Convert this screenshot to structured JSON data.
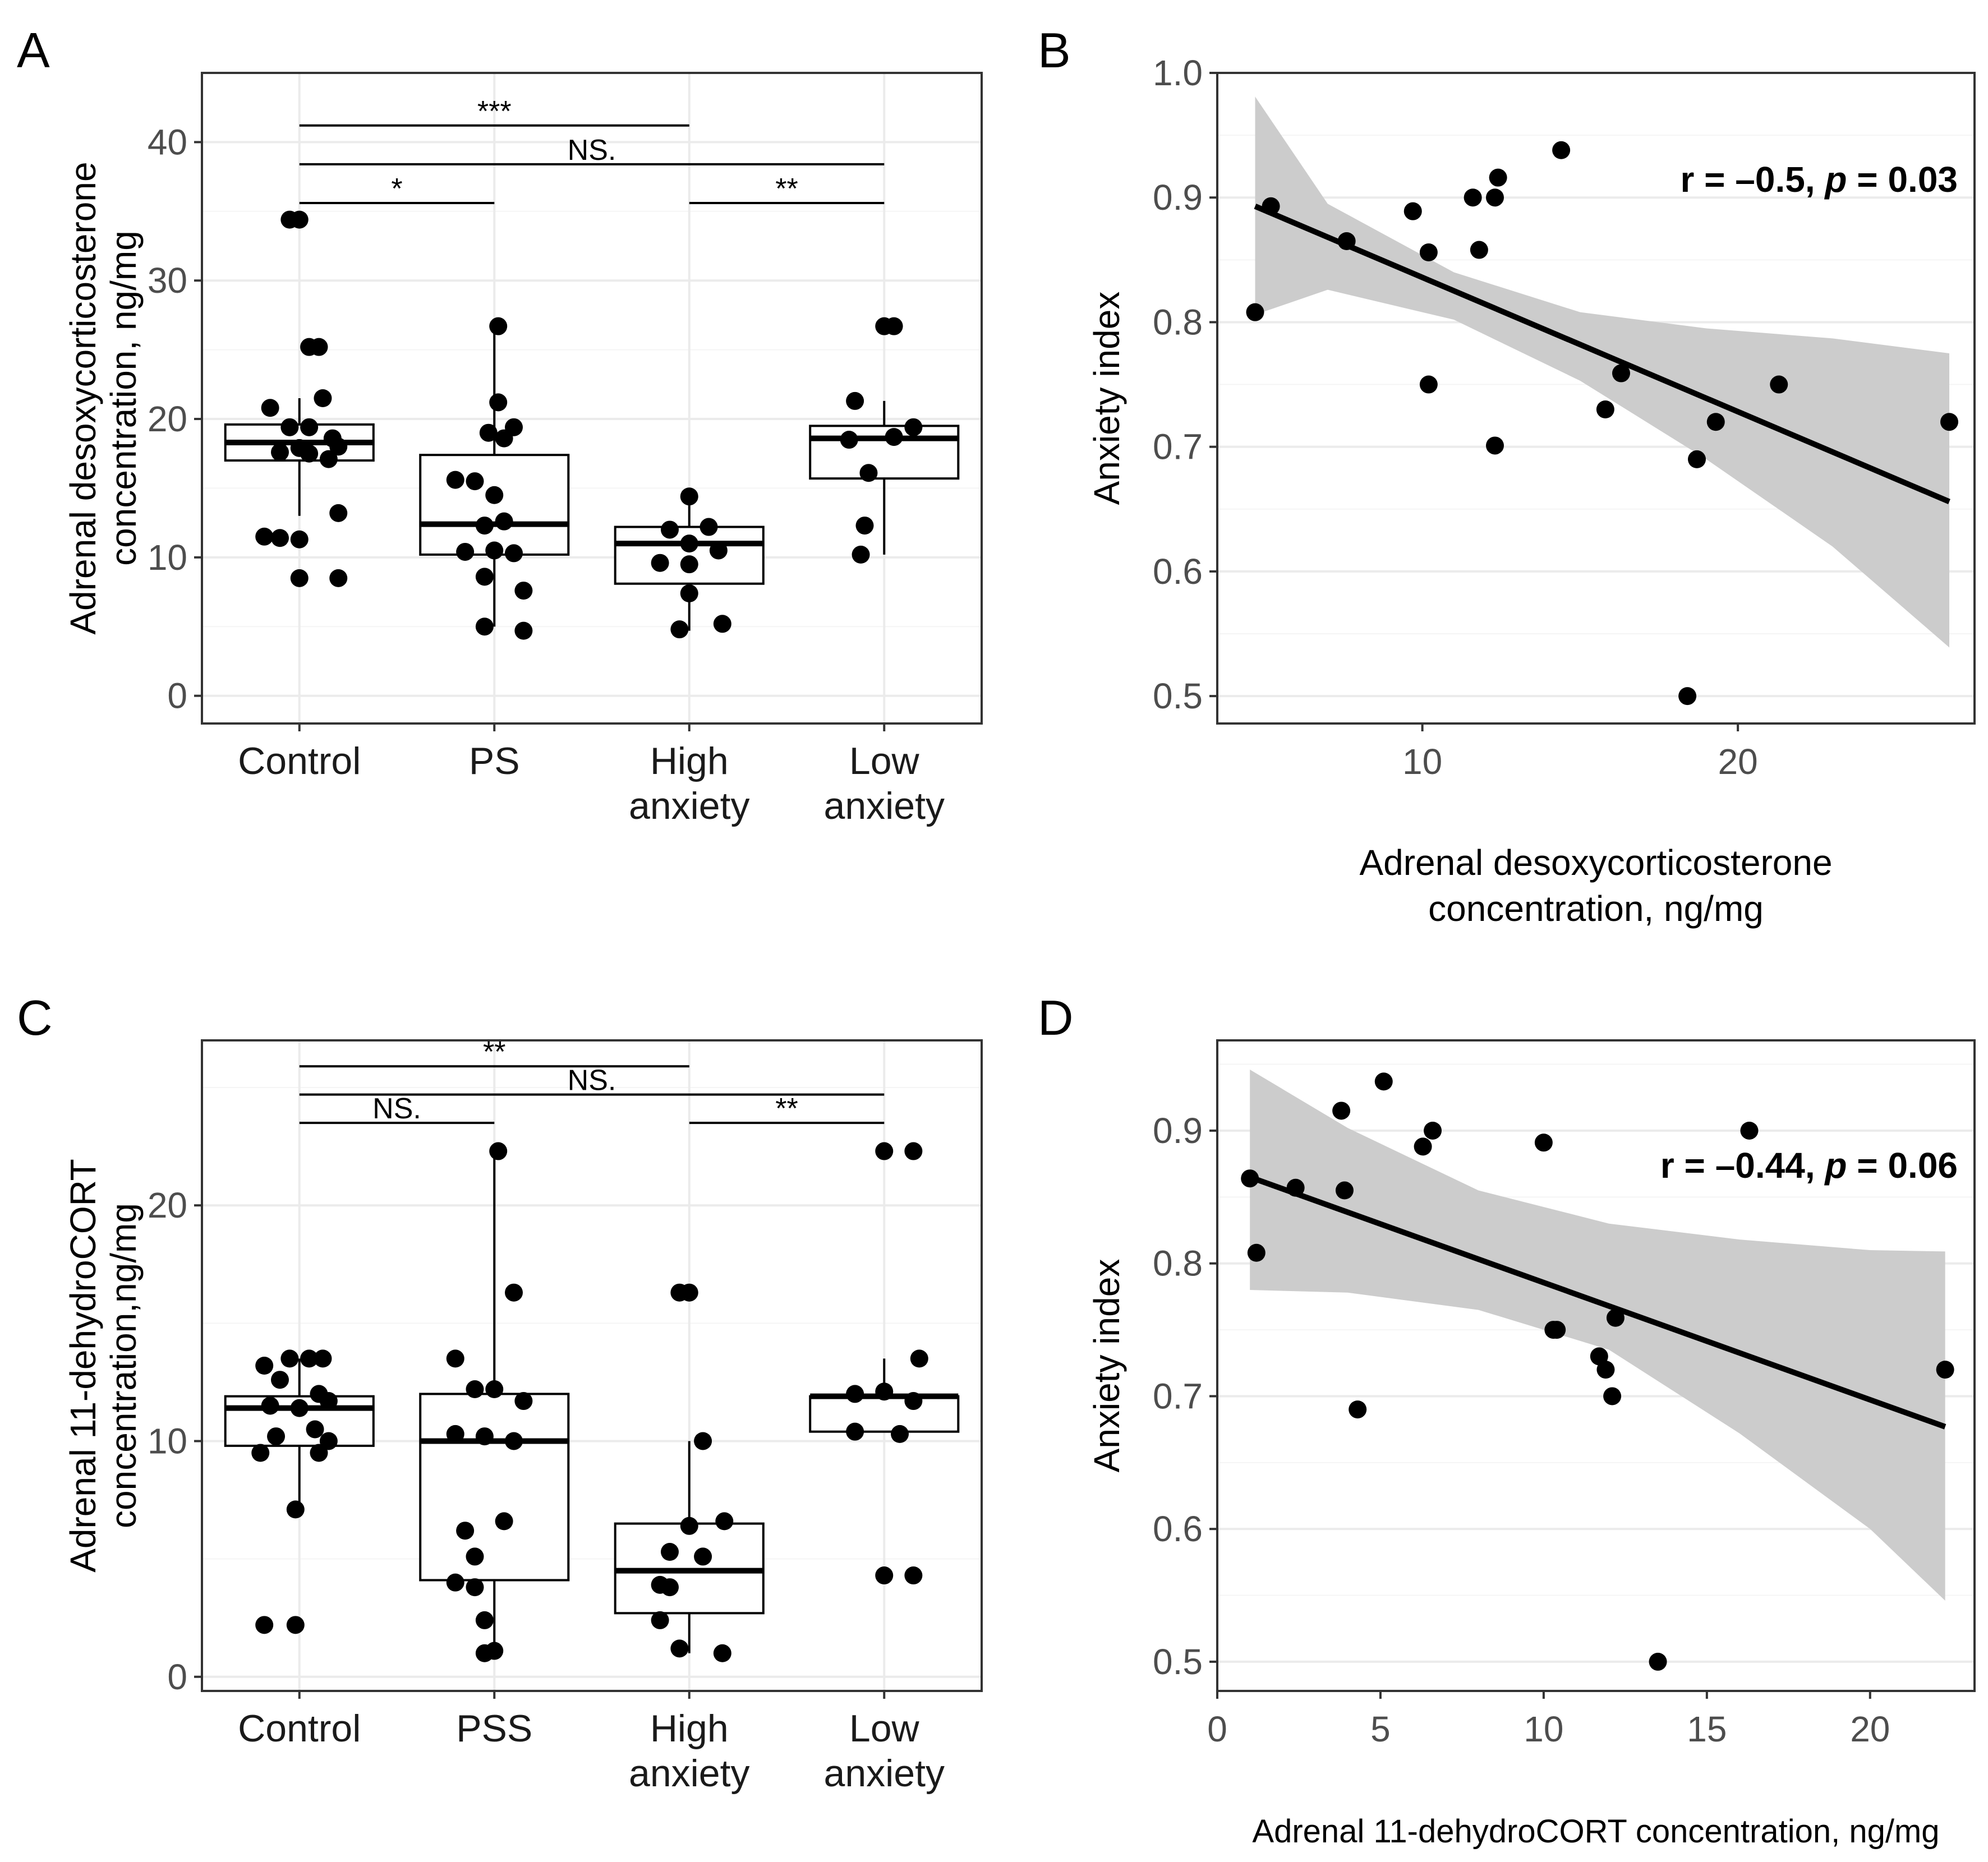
{
  "chart_data": [
    {
      "panel": "A",
      "type": "box",
      "categories": [
        "Control",
        "PS",
        "High\nanxiety",
        "Low\nanxiety"
      ],
      "ylabel": "Adrenal desoxycorticosterone\nconcentration, ng/mg",
      "ylim": [
        -2,
        45
      ],
      "yticks": [
        0,
        10,
        20,
        30,
        40
      ],
      "boxes": [
        {
          "q1": 17.0,
          "median": 18.3,
          "q3": 19.6,
          "whisker_low": 13.0,
          "whisker_high": 21.5
        },
        {
          "q1": 10.2,
          "median": 12.4,
          "q3": 17.4,
          "whisker_low": 5.0,
          "whisker_high": 26.7
        },
        {
          "q1": 8.1,
          "median": 11.0,
          "q3": 12.2,
          "whisker_low": 4.7,
          "whisker_high": 14.4
        },
        {
          "q1": 15.7,
          "median": 18.6,
          "q3": 19.5,
          "whisker_low": 10.2,
          "whisker_high": 21.3
        }
      ],
      "points": [
        [
          [
            -0.05,
            34.4
          ],
          [
            0.0,
            34.4
          ],
          [
            0.05,
            25.2
          ],
          [
            0.1,
            25.2
          ],
          [
            -0.15,
            20.8
          ],
          [
            0.12,
            21.5
          ],
          [
            -0.05,
            19.4
          ],
          [
            0.05,
            19.4
          ],
          [
            0.17,
            18.6
          ],
          [
            -0.1,
            17.6
          ],
          [
            0.0,
            17.9
          ],
          [
            0.2,
            18.0
          ],
          [
            0.05,
            17.5
          ],
          [
            0.15,
            17.1
          ],
          [
            -0.18,
            11.5
          ],
          [
            -0.1,
            11.4
          ],
          [
            0.0,
            11.3
          ],
          [
            0.2,
            13.2
          ],
          [
            0.0,
            8.5
          ],
          [
            0.2,
            8.5
          ]
        ],
        [
          [
            0.02,
            26.7
          ],
          [
            0.02,
            21.2
          ],
          [
            -0.03,
            19.0
          ],
          [
            0.1,
            19.4
          ],
          [
            0.05,
            18.6
          ],
          [
            -0.2,
            15.6
          ],
          [
            -0.1,
            15.5
          ],
          [
            0.0,
            14.5
          ],
          [
            -0.05,
            12.3
          ],
          [
            0.05,
            12.6
          ],
          [
            -0.15,
            10.4
          ],
          [
            0.0,
            10.5
          ],
          [
            0.1,
            10.3
          ],
          [
            -0.05,
            8.6
          ],
          [
            0.15,
            7.6
          ],
          [
            -0.05,
            5.0
          ],
          [
            0.15,
            4.7
          ]
        ],
        [
          [
            0.0,
            14.4
          ],
          [
            -0.1,
            12.0
          ],
          [
            0.1,
            12.2
          ],
          [
            0.0,
            11.0
          ],
          [
            -0.15,
            9.6
          ],
          [
            0.0,
            9.5
          ],
          [
            0.15,
            10.5
          ],
          [
            0.0,
            7.4
          ],
          [
            -0.05,
            4.8
          ],
          [
            0.17,
            5.2
          ]
        ],
        [
          [
            0.0,
            26.7
          ],
          [
            0.05,
            26.7
          ],
          [
            -0.15,
            21.3
          ],
          [
            0.15,
            19.4
          ],
          [
            -0.18,
            18.5
          ],
          [
            -0.08,
            16.1
          ],
          [
            -0.1,
            12.3
          ],
          [
            -0.12,
            10.2
          ],
          [
            0.05,
            18.7
          ]
        ]
      ],
      "significance": [
        {
          "from": 0,
          "to": 2,
          "label": "***",
          "y": 41.2
        },
        {
          "from": 0,
          "to": 3,
          "label": "NS.",
          "y": 38.4
        },
        {
          "from": 0,
          "to": 1,
          "label": "*",
          "y": 35.6
        },
        {
          "from": 2,
          "to": 3,
          "label": "**",
          "y": 35.6
        }
      ]
    },
    {
      "panel": "B",
      "type": "scatter",
      "xlabel": "Adrenal desoxycorticosterone\nconcentration, ng/mg",
      "ylabel": "Anxiety index",
      "xlim": [
        3.5,
        27.5
      ],
      "ylim": [
        0.478,
        1.0
      ],
      "xticks": [
        10,
        20
      ],
      "yticks": [
        0.5,
        0.6,
        0.7,
        0.8,
        0.9,
        1.0
      ],
      "x": [
        4.7,
        5.2,
        7.6,
        9.7,
        10.2,
        10.2,
        11.6,
        11.8,
        12.3,
        12.4,
        12.3,
        14.4,
        15.8,
        16.3,
        18.4,
        18.7,
        19.3,
        21.3,
        26.7
      ],
      "y": [
        0.808,
        0.893,
        0.865,
        0.889,
        0.856,
        0.75,
        0.9,
        0.858,
        0.9,
        0.916,
        0.701,
        0.938,
        0.73,
        0.759,
        0.5,
        0.69,
        0.72,
        0.75,
        0.72
      ],
      "fit": {
        "x": [
          4.7,
          26.7
        ],
        "y": [
          0.893,
          0.656
        ]
      },
      "ci_upper": [
        0.981,
        0.895,
        0.84,
        0.808,
        0.795,
        0.787,
        0.775
      ],
      "ci_lower": [
        0.806,
        0.826,
        0.802,
        0.753,
        0.69,
        0.62,
        0.539
      ],
      "ci_x": [
        4.7,
        7.0,
        11.0,
        15.0,
        19.0,
        23.0,
        26.7
      ],
      "annotation": {
        "r": "r = –0.5, ",
        "p_label": "p",
        "p_value": " = 0.03"
      }
    },
    {
      "panel": "C",
      "type": "box",
      "categories": [
        "Control",
        "PSS",
        "High\nanxiety",
        "Low\nanxiety"
      ],
      "ylabel": "Adrenal 11-dehydroCORT\nconcentration,ng/mg",
      "ylim": [
        -0.6,
        27.0
      ],
      "yticks": [
        0,
        10,
        20
      ],
      "boxes": [
        {
          "q1": 9.8,
          "median": 11.4,
          "q3": 11.9,
          "whisker_low": 7.1,
          "whisker_high": 13.5
        },
        {
          "q1": 4.1,
          "median": 10.0,
          "q3": 12.0,
          "whisker_low": 1.0,
          "whisker_high": 22.3
        },
        {
          "q1": 2.7,
          "median": 4.5,
          "q3": 6.5,
          "whisker_low": 1.0,
          "whisker_high": 10.0
        },
        {
          "q1": 10.4,
          "median": 11.9,
          "q3": 11.9,
          "whisker_low": 10.4,
          "whisker_high": 13.5
        }
      ],
      "points": [
        [
          [
            -0.05,
            13.5
          ],
          [
            0.05,
            13.5
          ],
          [
            0.12,
            13.5
          ],
          [
            -0.18,
            13.2
          ],
          [
            -0.1,
            12.6
          ],
          [
            0.1,
            12.0
          ],
          [
            -0.15,
            11.5
          ],
          [
            0.0,
            11.4
          ],
          [
            0.15,
            11.7
          ],
          [
            -0.12,
            10.2
          ],
          [
            0.08,
            10.5
          ],
          [
            0.15,
            10.0
          ],
          [
            -0.2,
            9.5
          ],
          [
            0.1,
            9.5
          ],
          [
            -0.02,
            7.1
          ],
          [
            -0.18,
            2.2
          ],
          [
            -0.02,
            2.2
          ]
        ],
        [
          [
            0.02,
            22.3
          ],
          [
            0.1,
            16.3
          ],
          [
            -0.2,
            13.5
          ],
          [
            -0.1,
            12.2
          ],
          [
            0.0,
            12.2
          ],
          [
            0.15,
            11.7
          ],
          [
            -0.2,
            10.3
          ],
          [
            -0.05,
            10.2
          ],
          [
            0.1,
            10.0
          ],
          [
            0.05,
            6.6
          ],
          [
            -0.15,
            6.2
          ],
          [
            -0.1,
            5.1
          ],
          [
            -0.2,
            4.0
          ],
          [
            -0.1,
            3.8
          ],
          [
            -0.05,
            2.4
          ],
          [
            -0.05,
            1.0
          ],
          [
            0.0,
            1.1
          ]
        ],
        [
          [
            -0.05,
            16.3
          ],
          [
            0.0,
            16.3
          ],
          [
            0.07,
            10.0
          ],
          [
            0.0,
            6.4
          ],
          [
            0.18,
            6.6
          ],
          [
            -0.1,
            5.3
          ],
          [
            0.07,
            5.1
          ],
          [
            -0.15,
            3.9
          ],
          [
            -0.1,
            3.8
          ],
          [
            -0.15,
            2.4
          ],
          [
            -0.05,
            1.2
          ],
          [
            0.17,
            1.0
          ]
        ],
        [
          [
            0.0,
            22.3
          ],
          [
            0.15,
            22.3
          ],
          [
            -0.15,
            12.0
          ],
          [
            0.0,
            12.1
          ],
          [
            0.18,
            13.5
          ],
          [
            -0.15,
            10.4
          ],
          [
            0.08,
            10.3
          ],
          [
            0.15,
            11.7
          ],
          [
            0.0,
            4.3
          ],
          [
            0.15,
            4.3
          ]
        ]
      ],
      "significance": [
        {
          "from": 0,
          "to": 2,
          "label": "**",
          "y": 25.9
        },
        {
          "from": 0,
          "to": 3,
          "label": "NS.",
          "y": 24.7
        },
        {
          "from": 0,
          "to": 1,
          "label": "NS.",
          "y": 23.5
        },
        {
          "from": 2,
          "to": 3,
          "label": "**",
          "y": 23.5
        }
      ]
    },
    {
      "panel": "D",
      "type": "scatter",
      "xlabel": "Adrenal 11-dehydroCORT concentration, ng/mg",
      "ylabel": "Anxiety index",
      "xlim": [
        0,
        23.2
      ],
      "ylim": [
        0.478,
        0.968
      ],
      "xticks": [
        0,
        5,
        10,
        15,
        20
      ],
      "yticks": [
        0.5,
        0.6,
        0.7,
        0.8,
        0.9
      ],
      "x": [
        1.0,
        1.2,
        2.4,
        3.8,
        3.9,
        4.3,
        5.1,
        6.3,
        6.6,
        10.0,
        10.3,
        10.4,
        11.7,
        11.9,
        12.1,
        12.2,
        13.5,
        16.3,
        22.3
      ],
      "y": [
        0.864,
        0.808,
        0.857,
        0.915,
        0.855,
        0.69,
        0.937,
        0.888,
        0.9,
        0.891,
        0.75,
        0.75,
        0.73,
        0.72,
        0.7,
        0.759,
        0.5,
        0.9,
        0.72
      ],
      "fit": {
        "x": [
          1.0,
          22.3
        ],
        "y": [
          0.865,
          0.677
        ]
      },
      "ci_upper": [
        0.946,
        0.902,
        0.855,
        0.83,
        0.818,
        0.81,
        0.809
      ],
      "ci_lower": [
        0.78,
        0.778,
        0.765,
        0.735,
        0.672,
        0.6,
        0.546
      ],
      "ci_x": [
        1.0,
        4.0,
        8.0,
        12.0,
        16.0,
        20.0,
        22.3
      ],
      "annotation": {
        "r": "r = –0.44, ",
        "p_label": "p",
        "p_value": " = 0.06"
      }
    }
  ],
  "panel_letters": [
    "A",
    "B",
    "C",
    "D"
  ],
  "colors": {
    "point": "#000000",
    "ci_band": "#cccccc",
    "grid_major": "#ebebeb",
    "grid_minor": "#f5f5f5",
    "frame": "#333333",
    "fit_line": "#000000"
  }
}
